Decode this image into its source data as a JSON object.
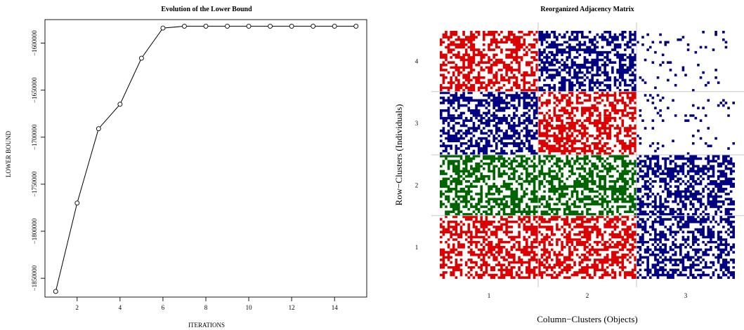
{
  "chart_data": [
    {
      "type": "line",
      "title": "Evolution of the Lower Bound",
      "xlabel": "ITERATIONS",
      "ylabel": "LOWER BOUND",
      "xlim": [
        0.5,
        15.5
      ],
      "ylim": [
        -1870000,
        -1575000
      ],
      "x_ticks": [
        2,
        4,
        6,
        8,
        10,
        12,
        14
      ],
      "x_tick_labels": [
        "2",
        "4",
        "6",
        "8",
        "10",
        "12",
        "14"
      ],
      "y_ticks": [
        -1850000,
        -1800000,
        -1750000,
        -1700000,
        -1650000,
        -1600000
      ],
      "y_tick_labels": [
        "−1850000",
        "−1800000",
        "−1750000",
        "−1700000",
        "−1650000",
        "−1600000"
      ],
      "series": [
        {
          "marker": "open-circle",
          "color": "#000000",
          "x": [
            1,
            2,
            3,
            4,
            5,
            6,
            7,
            8,
            9,
            10,
            11,
            12,
            13,
            14,
            15
          ],
          "y": [
            -1864000,
            -1770000,
            -1691000,
            -1665000,
            -1616000,
            -1584000,
            -1582000,
            -1582000,
            -1582000,
            -1582000,
            -1582000,
            -1582000,
            -1582000,
            -1582000,
            -1582000
          ]
        }
      ],
      "grid": false
    },
    {
      "type": "heatmap",
      "title": "Reorganized Adjacency Matrix",
      "xlabel": "Column−Clusters (Objects)",
      "ylabel": "Row−Clusters (Individuals)",
      "column_clusters": [
        "1",
        "2",
        "3"
      ],
      "column_cluster_sizes": [
        1,
        1,
        1
      ],
      "row_clusters": [
        "1",
        "2",
        "3",
        "4"
      ],
      "row_cluster_sizes": [
        1,
        1,
        1,
        1
      ],
      "grid": true,
      "blocks": [
        {
          "row": "1",
          "col": "1",
          "color": "#dd0000",
          "density": 0.55
        },
        {
          "row": "1",
          "col": "2",
          "color": "#dd0000",
          "density": 0.55
        },
        {
          "row": "1",
          "col": "3",
          "color": "#000080",
          "density": 0.55
        },
        {
          "row": "2",
          "col": "1",
          "color": "#006400",
          "density": 0.55
        },
        {
          "row": "2",
          "col": "2",
          "color": "#006400",
          "density": 0.55
        },
        {
          "row": "2",
          "col": "3",
          "color": "#000080",
          "density": 0.55
        },
        {
          "row": "3",
          "col": "1",
          "color": "#000080",
          "density": 0.55
        },
        {
          "row": "3",
          "col": "2",
          "color": "#dd0000",
          "density": 0.55
        },
        {
          "row": "3",
          "col": "3",
          "color": "#000080",
          "density": 0.05
        },
        {
          "row": "4",
          "col": "1",
          "color": "#dd0000",
          "density": 0.55
        },
        {
          "row": "4",
          "col": "2",
          "color": "#000080",
          "density": 0.55
        },
        {
          "row": "4",
          "col": "3",
          "color": "#000080",
          "density": 0.05
        }
      ]
    }
  ]
}
